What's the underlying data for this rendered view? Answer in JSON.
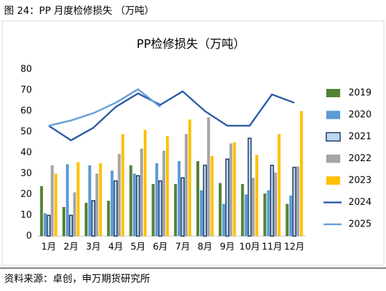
{
  "header": "图 24：PP 月度检修损失 （万吨）",
  "source": "资料来源：卓创，申万期货研究所",
  "chart_data": {
    "type": "bar",
    "title": "PP检修损失（万吨）",
    "legend": "right",
    "grid": false,
    "categories": [
      "1月",
      "2月",
      "3月",
      "4月",
      "5月",
      "6月",
      "7月",
      "8月",
      "9月",
      "10月",
      "11月",
      "12月"
    ],
    "ylim": [
      0,
      80
    ],
    "yticks": [
      0,
      10,
      20,
      30,
      40,
      50,
      60,
      70,
      80
    ],
    "series": [
      {
        "name": "2019",
        "type": "bar",
        "color": "#548235",
        "values": [
          24,
          14,
          16,
          17,
          34,
          25,
          25,
          36,
          25.5,
          25,
          20.5,
          15.5
        ]
      },
      {
        "name": "2020",
        "type": "bar",
        "color": "#5b9bd5",
        "values": [
          11,
          34.5,
          34,
          31.5,
          30,
          35,
          36,
          22,
          15.5,
          20,
          22,
          19.5
        ]
      },
      {
        "name": "2021",
        "type": "bar",
        "color": "#bdd7ee",
        "stroke": "#1f3864",
        "values": [
          10,
          10,
          17,
          26.5,
          29,
          26.5,
          28,
          34,
          37,
          47,
          34,
          33
        ]
      },
      {
        "name": "2022",
        "type": "bar",
        "color": "#a5a5a5",
        "values": [
          34,
          21,
          30,
          39.5,
          42,
          41,
          49,
          57,
          44.5,
          28,
          30.5,
          33.5
        ]
      },
      {
        "name": "2023",
        "type": "bar",
        "color": "#ffc000",
        "values": [
          30,
          35.5,
          35,
          49,
          51,
          48,
          56,
          38.5,
          45,
          39,
          49,
          60
        ]
      },
      {
        "name": "2024",
        "type": "line",
        "color": "#2e5ca8",
        "values": [
          53,
          46,
          52,
          62,
          68.5,
          63,
          69.5,
          60,
          53,
          53,
          68,
          64
        ]
      },
      {
        "name": "2025",
        "type": "line",
        "color": "#6a9fd8",
        "values": [
          53,
          55.5,
          59,
          64,
          70.5,
          62,
          null,
          null,
          null,
          null,
          null,
          null
        ]
      }
    ]
  }
}
